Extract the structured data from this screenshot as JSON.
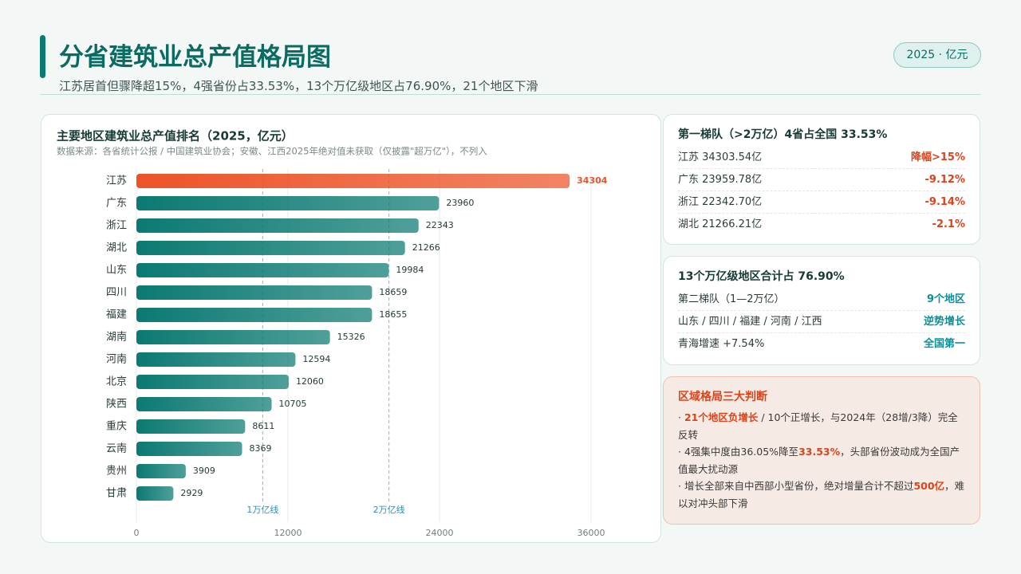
{
  "header": {
    "title": "分省建筑业总产值格局图",
    "subtitle": "江苏居首但骤降超15%，4强省份占33.53%，13个万亿级地区占76.90%，21个地区下滑",
    "badge": "2025 · 亿元"
  },
  "chart_data": {
    "type": "bar",
    "orientation": "horizontal",
    "title": "主要地区建筑业总产值排名（2025，亿元）",
    "subtitle": "数据来源：各省统计公报 / 中国建筑业协会；安徽、江西2025年绝对值未获取（仅披露\"超万亿\"），不列入",
    "categories": [
      "江苏",
      "广东",
      "浙江",
      "湖北",
      "山东",
      "四川",
      "福建",
      "湖南",
      "河南",
      "北京",
      "陕西",
      "重庆",
      "云南",
      "贵州",
      "甘肃"
    ],
    "values": [
      34304,
      23960,
      22343,
      21266,
      19984,
      18659,
      18655,
      15326,
      12594,
      12060,
      10705,
      8611,
      8369,
      3909,
      2929
    ],
    "color": "#0b7a72",
    "highlight_color": "#ec5428",
    "xlim": [
      0,
      36000
    ],
    "xticks": [
      0,
      12000,
      24000,
      36000
    ],
    "ref_lines": [
      {
        "value": 10000,
        "label": "1万亿线"
      },
      {
        "value": 20000,
        "label": "2万亿线"
      }
    ]
  },
  "panels": [
    {
      "title": "第一梯队（>2万亿）4省占全国 33.53%",
      "rows": [
        {
          "label": "江苏 34303.54亿",
          "value": "降幅>15%"
        },
        {
          "label": "广东 23959.78亿",
          "value": "-9.12%"
        },
        {
          "label": "浙江 22342.70亿",
          "value": "-9.14%"
        },
        {
          "label": "湖北 21266.21亿",
          "value": "-2.1%"
        }
      ]
    },
    {
      "title": "13个万亿级地区合计占 76.90%",
      "rows": [
        {
          "label": "第二梯队（1—2万亿）",
          "value": "9个地区"
        },
        {
          "label": "山东 / 四川 / 福建 / 河南 / 江西",
          "value": "逆势增长"
        },
        {
          "label": "青海增速 +7.54%",
          "value": "全国第一"
        }
      ]
    },
    {
      "title": "区域格局三大判断",
      "bullets": [
        [
          "· ",
          "21个地区负增长",
          " / 10个正增长，与2024年（28增/3降）完全反转"
        ],
        [
          "· 4强集中度由36.05%降至",
          "33.53%",
          "，头部省份波动成为全国产值最大扰动源"
        ],
        [
          "· 增长全部来自中西部小型省份，绝对增量合计不超过",
          "500亿",
          "，难以对冲头部下滑"
        ]
      ]
    }
  ]
}
